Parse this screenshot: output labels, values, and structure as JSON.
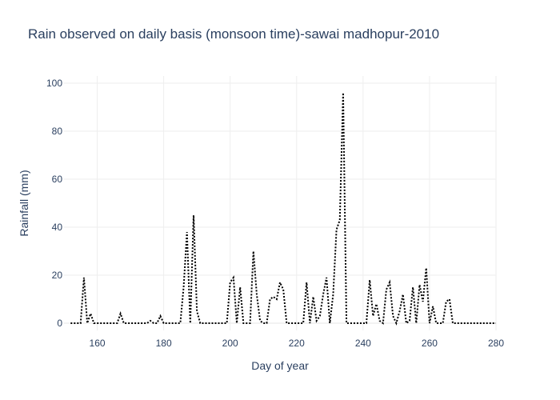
{
  "chart_data": {
    "type": "line",
    "title": "Rain observed on daily basis (monsoon time)-sawai madhopur-2010",
    "xlabel": "Day of year",
    "ylabel": "Rainfall (mm)",
    "xlim": [
      150,
      280
    ],
    "ylim": [
      -3,
      103
    ],
    "xticks": [
      160,
      180,
      200,
      220,
      240,
      260,
      280
    ],
    "yticks": [
      0,
      20,
      40,
      60,
      80,
      100
    ],
    "grid": true,
    "line_style": "dotted",
    "line_color": "#000000",
    "series": [
      {
        "x": [
          152,
          153,
          154,
          155,
          156,
          157,
          158,
          159,
          160,
          161,
          162,
          163,
          164,
          165,
          166,
          167,
          168,
          169,
          170,
          171,
          172,
          173,
          174,
          175,
          176,
          177,
          178,
          179,
          180,
          181,
          182,
          183,
          184,
          185,
          186,
          187,
          188,
          189,
          190,
          191,
          192,
          193,
          194,
          195,
          196,
          197,
          198,
          199,
          200,
          201,
          202,
          203,
          204,
          205,
          206,
          207,
          208,
          209,
          210,
          211,
          212,
          213,
          214,
          215,
          216,
          217,
          218,
          219,
          220,
          221,
          222,
          223,
          224,
          225,
          226,
          227,
          228,
          229,
          230,
          231,
          232,
          233,
          234,
          235,
          236,
          237,
          238,
          239,
          240,
          241,
          242,
          243,
          244,
          245,
          246,
          247,
          248,
          249,
          250,
          251,
          252,
          253,
          254,
          255,
          256,
          257,
          258,
          259,
          260,
          261,
          262,
          263,
          264,
          265,
          266,
          267,
          268,
          269,
          270,
          271,
          272,
          273,
          274,
          275,
          276,
          277,
          278,
          279,
          280
        ],
        "y": [
          0,
          0,
          0,
          0,
          19,
          0,
          4,
          0,
          0,
          0,
          0,
          0,
          0,
          0,
          0,
          4,
          0,
          0,
          0,
          0,
          0,
          0,
          0,
          0,
          1,
          0,
          0,
          3,
          0,
          0,
          0,
          0,
          0,
          0,
          15,
          38,
          0,
          45,
          5,
          0,
          0,
          0,
          0,
          0,
          0,
          0,
          0,
          0,
          17,
          19,
          0,
          15,
          0,
          0,
          0,
          30,
          12,
          1,
          0,
          0,
          10,
          11,
          10,
          17,
          14,
          0,
          0,
          0,
          0,
          0,
          0,
          17,
          0,
          11,
          1,
          3,
          12,
          19,
          0,
          12,
          39,
          43,
          96,
          0,
          0,
          0,
          0,
          0,
          0,
          0,
          18,
          3,
          8,
          1,
          0,
          14,
          17,
          3,
          0,
          5,
          12,
          0,
          1,
          15,
          0,
          16,
          9,
          23,
          0,
          7,
          0,
          0,
          0,
          9,
          10,
          0,
          0,
          0,
          0,
          0,
          0,
          0,
          0,
          0,
          0,
          0,
          0,
          0,
          0
        ]
      }
    ]
  }
}
